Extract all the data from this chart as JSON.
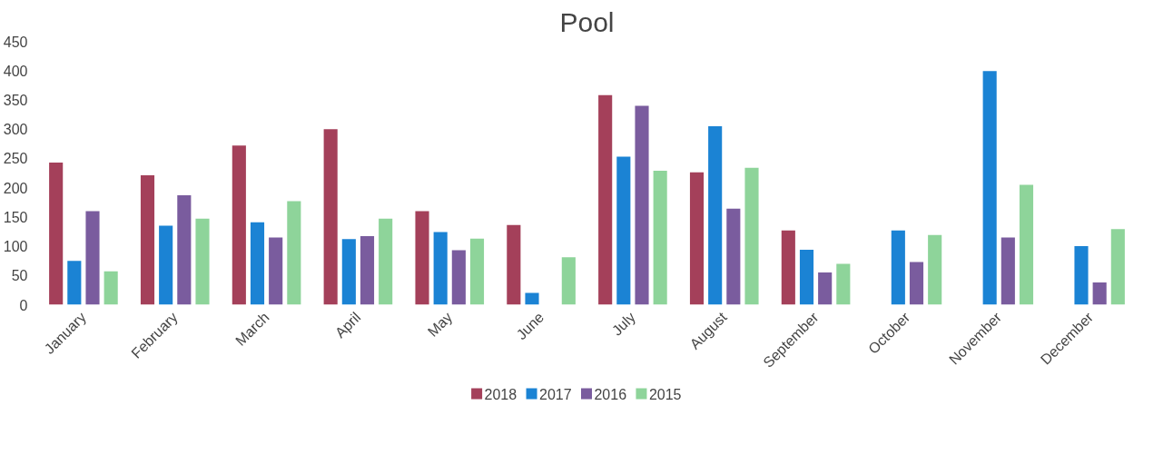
{
  "chart_data": {
    "type": "bar",
    "title": "Pool",
    "categories": [
      "January",
      "February",
      "March",
      "April",
      "May",
      "June",
      "July",
      "August",
      "September",
      "October",
      "November",
      "December"
    ],
    "series": [
      {
        "name": "2018",
        "color": "#a4405a",
        "values": [
          243,
          221,
          272,
          300,
          160,
          136,
          358,
          226,
          127,
          null,
          null,
          null
        ]
      },
      {
        "name": "2017",
        "color": "#1b83d4",
        "values": [
          75,
          135,
          141,
          112,
          124,
          20,
          253,
          305,
          94,
          127,
          399,
          100
        ]
      },
      {
        "name": "2016",
        "color": "#7a5c9e",
        "values": [
          160,
          187,
          115,
          117,
          93,
          null,
          340,
          164,
          55,
          73,
          115,
          38
        ]
      },
      {
        "name": "2015",
        "color": "#8ed49a",
        "values": [
          57,
          147,
          177,
          147,
          113,
          81,
          229,
          234,
          70,
          119,
          205,
          129
        ]
      }
    ],
    "ylim": [
      0,
      450
    ],
    "yticks": [
      0,
      50,
      100,
      150,
      200,
      250,
      300,
      350,
      400,
      450
    ],
    "grid": false,
    "legend": "bottom"
  }
}
